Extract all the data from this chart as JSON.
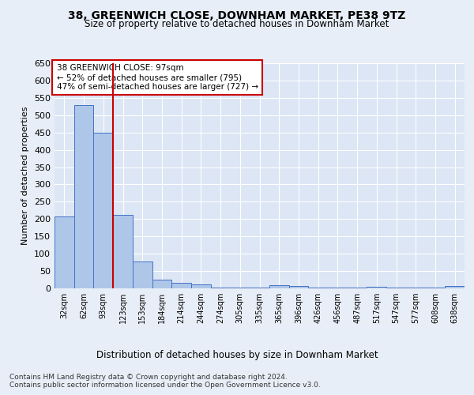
{
  "title": "38, GREENWICH CLOSE, DOWNHAM MARKET, PE38 9TZ",
  "subtitle": "Size of property relative to detached houses in Downham Market",
  "xlabel": "Distribution of detached houses by size in Downham Market",
  "ylabel": "Number of detached properties",
  "categories": [
    "32sqm",
    "62sqm",
    "93sqm",
    "123sqm",
    "153sqm",
    "184sqm",
    "214sqm",
    "244sqm",
    "274sqm",
    "305sqm",
    "335sqm",
    "365sqm",
    "396sqm",
    "426sqm",
    "456sqm",
    "487sqm",
    "517sqm",
    "547sqm",
    "577sqm",
    "608sqm",
    "638sqm"
  ],
  "values": [
    208,
    530,
    450,
    212,
    77,
    25,
    17,
    12,
    2,
    2,
    2,
    8,
    7,
    2,
    2,
    2,
    4,
    2,
    2,
    2,
    7
  ],
  "bar_color": "#aec6e8",
  "bar_edge_color": "#4472c4",
  "background_color": "#e8eef7",
  "plot_bg_color": "#dce6f5",
  "vline_color": "#cc0000",
  "annotation_text": "38 GREENWICH CLOSE: 97sqm\n← 52% of detached houses are smaller (795)\n47% of semi-detached houses are larger (727) →",
  "annotation_box_color": "#ffffff",
  "annotation_box_edge_color": "#cc0000",
  "footer_text": "Contains HM Land Registry data © Crown copyright and database right 2024.\nContains public sector information licensed under the Open Government Licence v3.0.",
  "ylim": [
    0,
    650
  ],
  "yticks": [
    0,
    50,
    100,
    150,
    200,
    250,
    300,
    350,
    400,
    450,
    500,
    550,
    600,
    650
  ]
}
